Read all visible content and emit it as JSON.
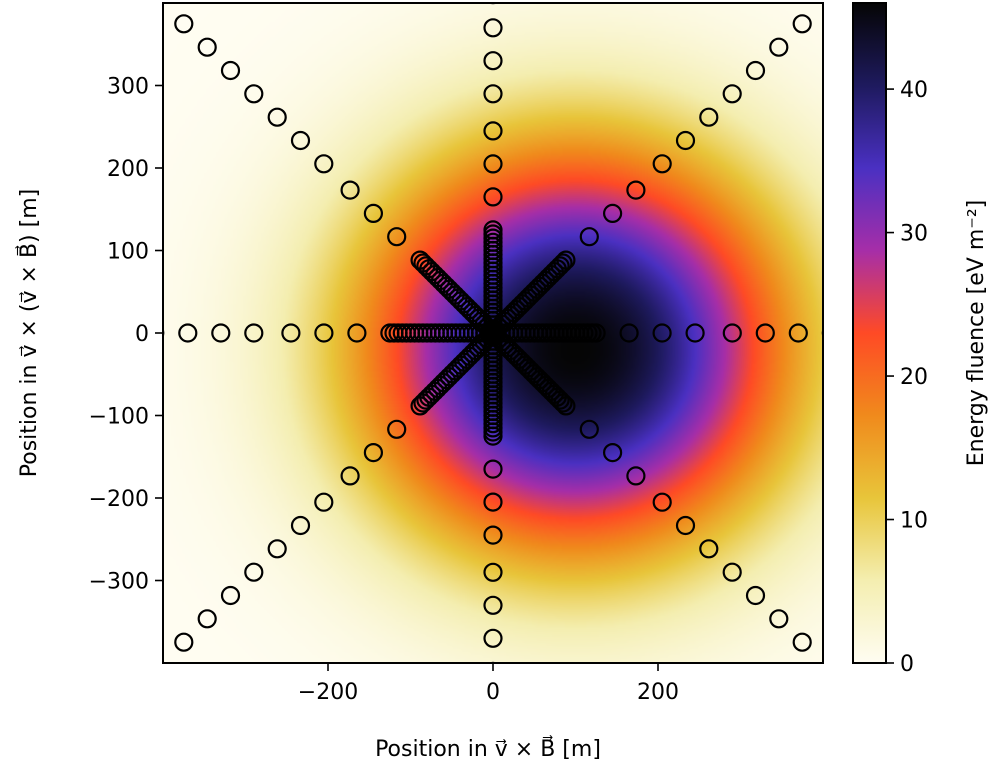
{
  "chart_data": {
    "type": "heatmap",
    "title": "",
    "xlabel": "Position in v⃗ × B⃗ [m]",
    "ylabel": "Position in v⃗ × (v⃗ × B⃗) [m]",
    "xlim": [
      -400,
      400
    ],
    "ylim": [
      -400,
      400
    ],
    "xticks": [
      -200,
      0,
      200
    ],
    "xtick_labels": [
      "−200",
      "0",
      "200"
    ],
    "yticks": [
      -300,
      -200,
      -100,
      0,
      100,
      200,
      300
    ],
    "ytick_labels": [
      "−300",
      "−200",
      "−100",
      "0",
      "100",
      "200",
      "300"
    ],
    "colorbar": {
      "label": "Energy fluence [eV m⁻²]",
      "range": [
        0,
        46
      ],
      "ticks": [
        0,
        10,
        20,
        30,
        40
      ],
      "tick_labels": [
        "0",
        "10",
        "20",
        "30",
        "40"
      ],
      "colormap": [
        "#fffdf2",
        "#f4eeb0",
        "#e8c53a",
        "#f08a1c",
        "#ff4a25",
        "#a62ea8",
        "#4a30c2",
        "#1e1a5e",
        "#050505"
      ]
    },
    "field_peak": {
      "x": 100,
      "y": -20,
      "value": 46
    },
    "antenna_layout": {
      "arms": 8,
      "arm_angles_deg": [
        0,
        45,
        90,
        135,
        180,
        225,
        270,
        315
      ],
      "inner_radii_m": [
        5,
        10,
        15,
        20,
        25,
        30,
        35,
        40,
        45,
        50,
        55,
        60,
        65,
        70,
        75,
        80,
        85,
        90,
        95,
        100,
        105,
        110,
        115,
        120,
        125
      ],
      "outer_radii_m": [
        165,
        205,
        245,
        290,
        330,
        370,
        410,
        450,
        490,
        530
      ]
    }
  }
}
